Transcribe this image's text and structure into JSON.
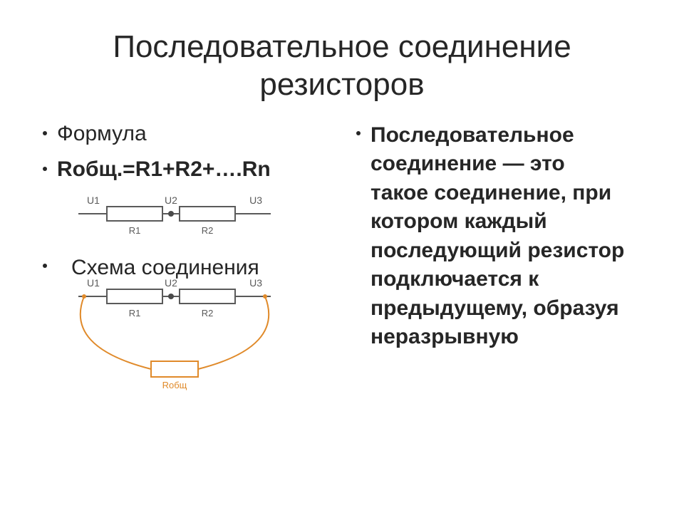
{
  "title": "Последовательное соединение резисторов",
  "left": {
    "formula_label": "Формула",
    "formula": "Rобщ.=R1+R2+….Rn",
    "schema_label": "Схема соединения"
  },
  "right": {
    "definition": "Последовательное соединение  — это такое соединение, при котором каждый последующий резистор подключается к предыдущему, образуя неразрывную"
  },
  "diag": {
    "u1": "U1",
    "u2": "U2",
    "u3": "U3",
    "r1": "R1",
    "r2": "R2",
    "r_total": "Rобщ",
    "wire_color": "#5a5a5a",
    "text_color": "#5a5a5a",
    "curve_color": "#e08a2a",
    "box_fill": "#ffffff",
    "node_color": "#4a4a4a",
    "label_fontsize": 14,
    "rlabel_fontsize": 13,
    "resistor_w": 78,
    "resistor_h": 20
  }
}
